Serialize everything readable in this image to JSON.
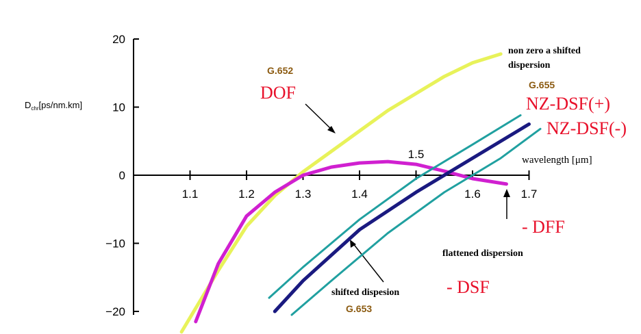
{
  "chart_data": {
    "type": "line",
    "y_label": {
      "main": "D",
      "sub": "chr",
      "rest": "[ps/nm.km]"
    },
    "x_label": "wavelength [μm]",
    "xlim": [
      1.0,
      1.72
    ],
    "xticks": [
      1.1,
      1.2,
      1.3,
      1.4,
      1.5,
      1.6,
      1.7
    ],
    "ylim": [
      -20,
      20
    ],
    "yticks": [
      20,
      10,
      0,
      {
        "value": -10,
        "label": "−10"
      },
      {
        "value": -20,
        "label": "−20"
      }
    ],
    "series": [
      {
        "color": "#e8f25a",
        "x": [
          1.085,
          1.15,
          1.2,
          1.25,
          1.3,
          1.35,
          1.4,
          1.45,
          1.5,
          1.55,
          1.6,
          1.65
        ],
        "values": [
          -23,
          -14,
          -7.5,
          -3,
          0.5,
          3.5,
          6.5,
          9.5,
          12,
          14.5,
          16.5,
          17.8
        ]
      },
      {
        "color": "#d020d0",
        "x": [
          1.11,
          1.15,
          1.2,
          1.25,
          1.3,
          1.35,
          1.4,
          1.45,
          1.5,
          1.55,
          1.6,
          1.66
        ],
        "values": [
          -21.5,
          -13,
          -6,
          -2.5,
          0,
          1.2,
          1.8,
          2.0,
          1.6,
          0.6,
          -0.5,
          -1.3
        ]
      },
      {
        "color": "#20a0a0",
        "x": [
          1.24,
          1.3,
          1.4,
          1.5,
          1.6,
          1.685
        ],
        "values": [
          -18,
          -13.5,
          -6.5,
          -0.5,
          4.5,
          8.8
        ]
      },
      {
        "color": "#20a0a0",
        "x": [
          1.28,
          1.35,
          1.45,
          1.55,
          1.65,
          1.72
        ],
        "values": [
          -20.5,
          -15.5,
          -8.5,
          -2.5,
          2.5,
          6.8
        ]
      },
      {
        "color": "#1a1a80",
        "x": [
          1.25,
          1.3,
          1.4,
          1.5,
          1.6,
          1.7
        ],
        "values": [
          -20,
          -15.5,
          -8,
          -2.5,
          2.5,
          7.5
        ]
      }
    ],
    "annotations": [
      "G.652",
      "DOF",
      "non zero a shifted",
      "dispersion",
      "G.655",
      "NZ-DSF(+)",
      "NZ-DSF(-)",
      "- DFF",
      "flattened dispersion",
      "shifted dispesion",
      "- DSF",
      "G.653"
    ]
  }
}
